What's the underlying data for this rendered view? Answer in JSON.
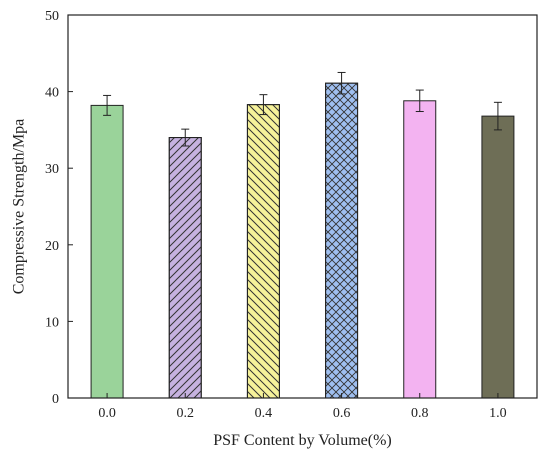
{
  "chart_data": {
    "type": "bar",
    "title": "",
    "xlabel": "PSF Content by Volume(%)",
    "ylabel": "Compressive Strength/Mpa",
    "ylim": [
      0,
      50
    ],
    "yticks": [
      "0",
      "10",
      "20",
      "30",
      "40",
      "50"
    ],
    "categories": [
      "0.0",
      "0.2",
      "0.4",
      "0.6",
      "0.8",
      "1.0"
    ],
    "values": [
      38.2,
      34.0,
      38.3,
      41.1,
      38.8,
      36.8
    ],
    "errors": [
      1.3,
      1.1,
      1.3,
      1.4,
      1.4,
      1.8
    ],
    "bar_styles": [
      {
        "fill": "#9ad39a",
        "pattern": "none"
      },
      {
        "fill": "#c6b2e0",
        "pattern": "diagonal-right"
      },
      {
        "fill": "#f6f29a",
        "pattern": "diagonal-left"
      },
      {
        "fill": "#9fbff0",
        "pattern": "crosshatch"
      },
      {
        "fill": "#f3b3f1",
        "pattern": "none"
      },
      {
        "fill": "#6e6e56",
        "pattern": "none"
      }
    ],
    "grid": false,
    "legend": "none"
  }
}
